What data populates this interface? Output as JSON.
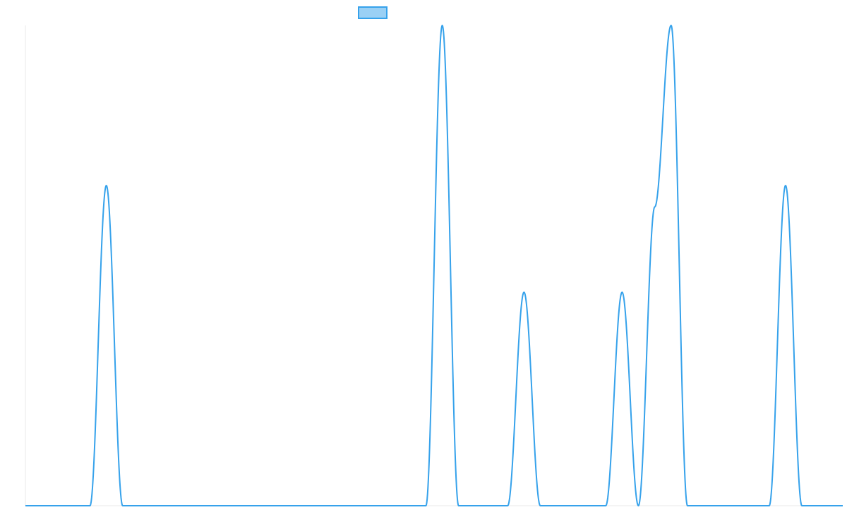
{
  "chart_data": {
    "type": "line",
    "title": "",
    "xlabel": "",
    "ylabel": "",
    "legend": {
      "placement": "top-center",
      "swatch_fill": "#9ad0f5",
      "swatch_stroke": "#36a2eb",
      "label": ""
    },
    "x": [
      0,
      0.78,
      0.99,
      1.2,
      4.9,
      5.1,
      5.3,
      5.9,
      6.1,
      6.3,
      7.1,
      7.3,
      7.5,
      7.7,
      7.9,
      8.1,
      9.1,
      9.3,
      9.5,
      10.0
    ],
    "series": [
      {
        "color": "#36a2eb",
        "values": [
          0,
          0,
          3,
          0,
          0,
          4.5,
          0,
          0,
          2,
          0,
          0,
          2,
          0,
          2.8,
          4.5,
          0,
          0,
          3,
          0,
          0
        ]
      }
    ],
    "xlim": [
      0,
      10
    ],
    "ylim": [
      0,
      4.5
    ],
    "grid": false,
    "peak_width": 0.2
  }
}
